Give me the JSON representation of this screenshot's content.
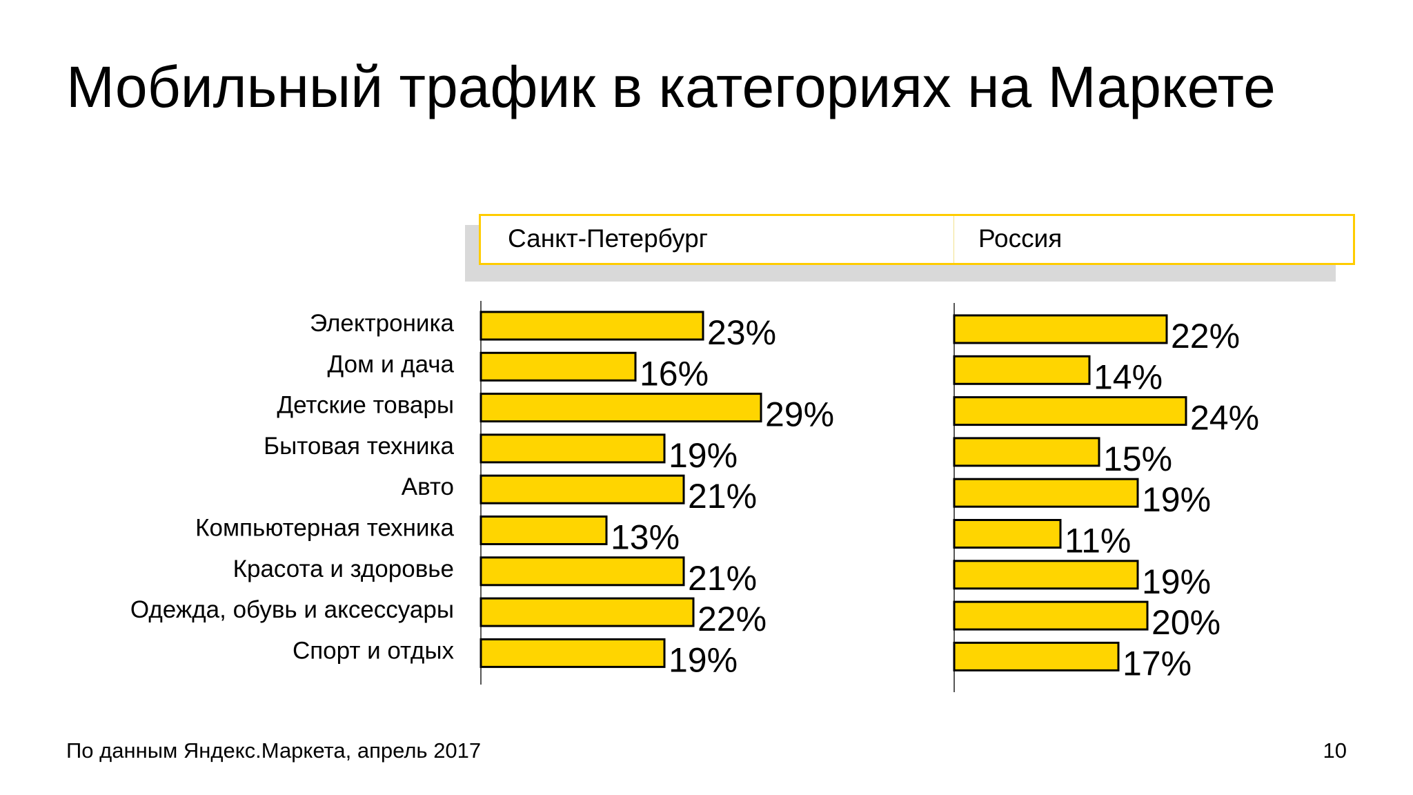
{
  "title": "Мобильный трафик в категориях на Маркете",
  "footer": "По данным Яндекс.Маркета, апрель 2017",
  "page_number": "10",
  "colors": {
    "bar": "#ffd500",
    "header_border": "#ffcc00"
  },
  "chart_data": {
    "type": "bar",
    "orientation": "horizontal",
    "categories": [
      "Электроника",
      "Дом и дача",
      "Детские товары",
      "Бытовая техника",
      "Авто",
      "Компьютерная техника",
      "Красота и здоровье",
      "Одежда, обувь и аксессуары",
      "Спорт и отдых"
    ],
    "series": [
      {
        "name": "Санкт-Петербург",
        "values": [
          23,
          16,
          29,
          19,
          21,
          13,
          21,
          22,
          19
        ]
      },
      {
        "name": "Россия",
        "values": [
          22,
          14,
          24,
          15,
          19,
          11,
          19,
          20,
          17
        ]
      }
    ],
    "unit": "%",
    "data_labels": true,
    "grid": false
  }
}
